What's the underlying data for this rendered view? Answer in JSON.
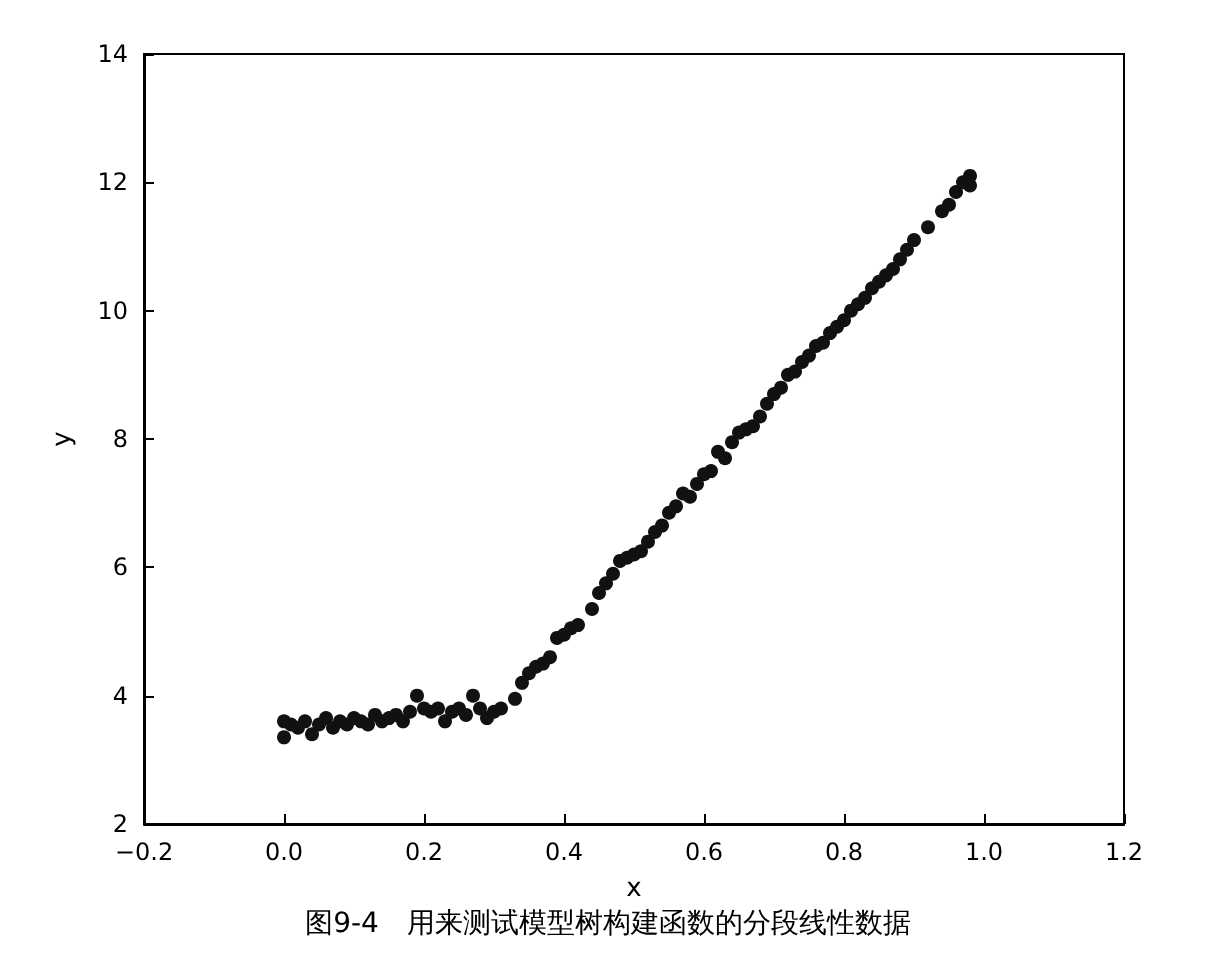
{
  "chart_data": {
    "type": "scatter",
    "xlabel": "x",
    "ylabel": "y",
    "annotations": [
      "图9-4　用来测试模型树构建函数的分段线性数据"
    ],
    "marker": "circle",
    "xlim": [
      -0.2,
      1.2
    ],
    "xticks": [
      {
        "value": -0.2,
        "label": "−0.2"
      },
      {
        "value": 0,
        "label": "0.0"
      },
      0.2,
      0.4,
      0.6,
      0.8,
      {
        "value": 1,
        "label": "1.0"
      },
      1.2
    ],
    "ylim": [
      2,
      14
    ],
    "yticks": [
      2,
      4,
      6,
      8,
      10,
      12,
      14
    ],
    "series": [
      {
        "color": "#111111",
        "x": [
          0.0,
          0.0,
          0.01,
          0.02,
          0.03,
          0.04,
          0.05,
          0.06,
          0.07,
          0.08,
          0.09,
          0.1,
          0.11,
          0.12,
          0.13,
          0.14,
          0.15,
          0.16,
          0.17,
          0.18,
          0.19,
          0.2,
          0.21,
          0.22,
          0.23,
          0.24,
          0.25,
          0.26,
          0.27,
          0.28,
          0.29,
          0.3,
          0.31,
          0.33,
          0.34,
          0.35,
          0.36,
          0.37,
          0.38,
          0.39,
          0.4,
          0.41,
          0.42,
          0.44,
          0.45,
          0.46,
          0.47,
          0.48,
          0.49,
          0.5,
          0.51,
          0.52,
          0.53,
          0.54,
          0.55,
          0.56,
          0.57,
          0.58,
          0.59,
          0.6,
          0.61,
          0.62,
          0.63,
          0.64,
          0.65,
          0.66,
          0.67,
          0.68,
          0.69,
          0.7,
          0.71,
          0.72,
          0.73,
          0.74,
          0.75,
          0.76,
          0.77,
          0.78,
          0.79,
          0.8,
          0.81,
          0.82,
          0.83,
          0.84,
          0.85,
          0.86,
          0.87,
          0.88,
          0.89,
          0.9,
          0.92,
          0.94,
          0.95,
          0.96,
          0.97,
          0.98,
          0.98
        ],
        "values": [
          3.6,
          3.35,
          3.55,
          3.5,
          3.6,
          3.4,
          3.55,
          3.65,
          3.5,
          3.6,
          3.55,
          3.65,
          3.6,
          3.55,
          3.7,
          3.6,
          3.65,
          3.7,
          3.6,
          3.75,
          4.0,
          3.8,
          3.75,
          3.8,
          3.6,
          3.75,
          3.8,
          3.7,
          4.0,
          3.8,
          3.65,
          3.75,
          3.8,
          3.95,
          4.2,
          4.35,
          4.45,
          4.5,
          4.6,
          4.9,
          4.95,
          5.05,
          5.1,
          5.35,
          5.6,
          5.75,
          5.9,
          6.1,
          6.15,
          6.2,
          6.25,
          6.4,
          6.55,
          6.65,
          6.85,
          6.95,
          7.15,
          7.1,
          7.3,
          7.45,
          7.5,
          7.8,
          7.7,
          7.95,
          8.1,
          8.15,
          8.2,
          8.35,
          8.55,
          8.7,
          8.8,
          9.0,
          9.05,
          9.2,
          9.3,
          9.45,
          9.5,
          9.65,
          9.75,
          9.85,
          10.0,
          10.1,
          10.2,
          10.35,
          10.45,
          10.55,
          10.65,
          10.8,
          10.95,
          11.1,
          11.3,
          11.55,
          11.65,
          11.85,
          12.0,
          12.1,
          11.95
        ]
      }
    ]
  }
}
